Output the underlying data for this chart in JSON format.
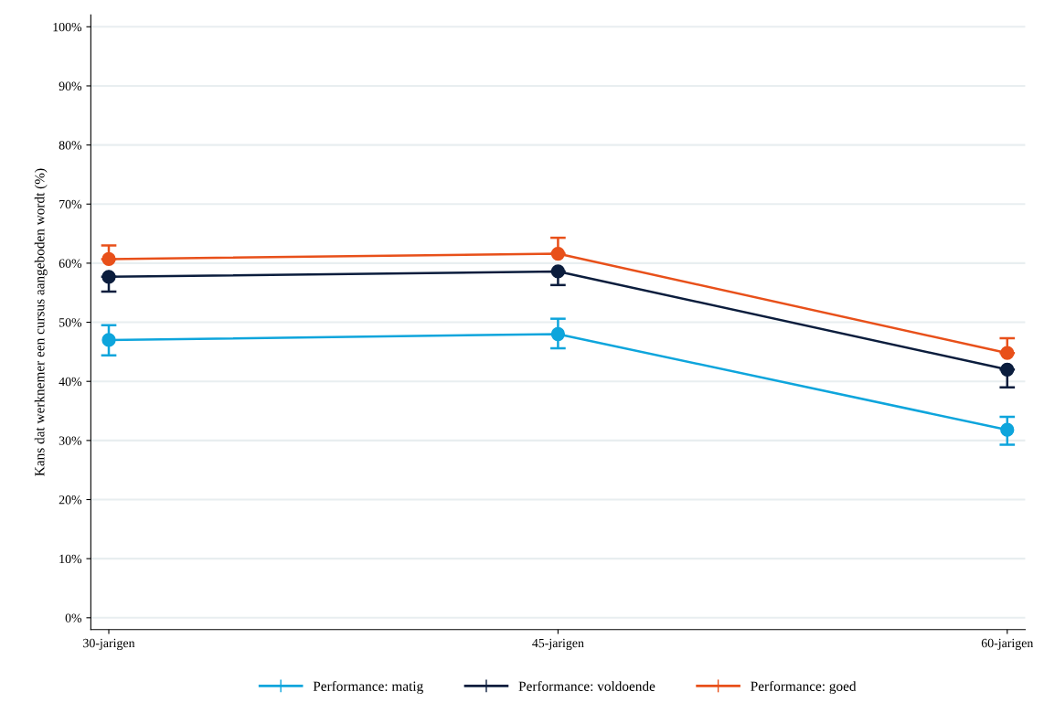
{
  "chart_data": {
    "type": "line",
    "ylabel": "Kans dat werknemer een cursus aangeboden wordt (%)",
    "categories": [
      "30-jarigen",
      "45-jarigen",
      "60-jarigen"
    ],
    "series": [
      {
        "name": "Performance: matig",
        "color": "#0ea5dc",
        "values": [
          47.0,
          48.0,
          31.8
        ],
        "errors": [
          [
            44.4,
            49.5
          ],
          [
            45.6,
            50.6
          ],
          [
            29.3,
            34.0
          ]
        ]
      },
      {
        "name": "Performance: voldoende",
        "color": "#0b1d3d",
        "values": [
          57.7,
          58.6,
          42.0
        ],
        "errors": [
          [
            55.2,
            57.7
          ],
          [
            56.3,
            58.6
          ],
          [
            39.0,
            42.0
          ]
        ]
      },
      {
        "name": "Performance: goed",
        "color": "#e8501a",
        "values": [
          60.7,
          61.6,
          44.8
        ],
        "errors": [
          [
            60.7,
            63.0
          ],
          [
            61.6,
            64.3
          ],
          [
            44.8,
            47.3
          ]
        ]
      }
    ],
    "ylim": [
      -2,
      102
    ],
    "yticks": [
      {
        "value": 0,
        "label": "0%"
      },
      {
        "value": 10,
        "label": "10%"
      },
      {
        "value": 20,
        "label": "20%"
      },
      {
        "value": 30,
        "label": "30%"
      },
      {
        "value": 40,
        "label": "40%"
      },
      {
        "value": 50,
        "label": "50%"
      },
      {
        "value": 60,
        "label": "60%"
      },
      {
        "value": 70,
        "label": "70%"
      },
      {
        "value": 80,
        "label": "80%"
      },
      {
        "value": 90,
        "label": "90%"
      },
      {
        "value": 100,
        "label": "100%"
      }
    ],
    "grid": "y",
    "legend": "bottom",
    "marker": "circle",
    "line_style": "solid"
  }
}
